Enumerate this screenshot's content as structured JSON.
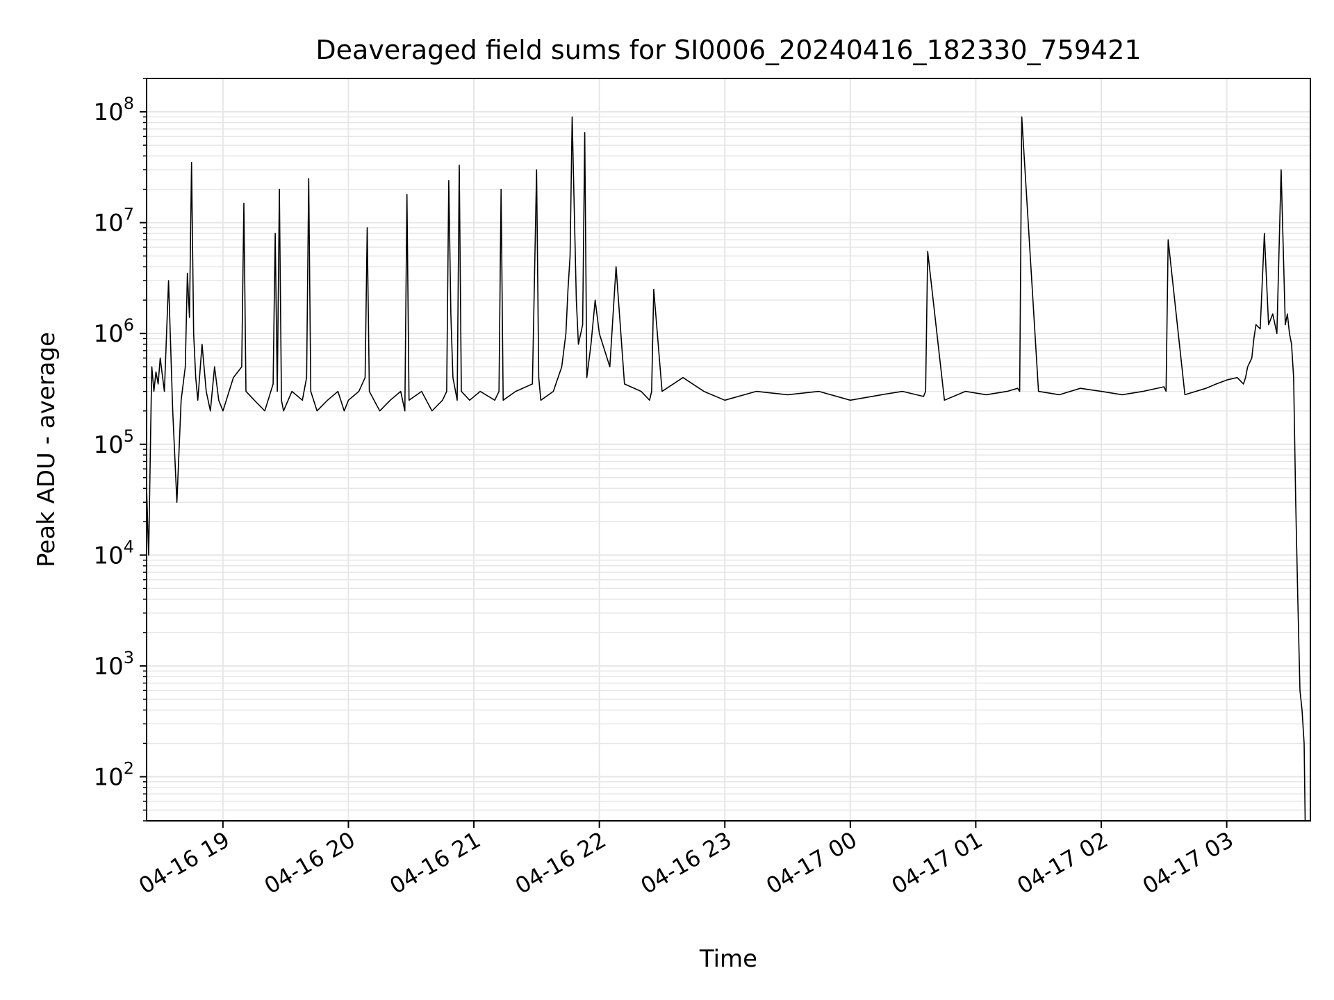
{
  "chart_data": {
    "type": "line",
    "title": "Deaveraged field sums for SI0006_20240416_182330_759421",
    "xlabel": "Time",
    "ylabel": "Peak ADU - average",
    "yscale": "log",
    "ylim": [
      40,
      200000000
    ],
    "xlim": [
      "2024-04-16T18:23:30",
      "2024-04-17T03:40:00"
    ],
    "grid": true,
    "legend": "none",
    "line_color": "#000000",
    "grid_color": "#e6e6e6",
    "x_ticks": [
      {
        "value": "2024-04-16T19:00:00",
        "label": "04-16 19"
      },
      {
        "value": "2024-04-16T20:00:00",
        "label": "04-16 20"
      },
      {
        "value": "2024-04-16T21:00:00",
        "label": "04-16 21"
      },
      {
        "value": "2024-04-16T22:00:00",
        "label": "04-16 22"
      },
      {
        "value": "2024-04-16T23:00:00",
        "label": "04-16 23"
      },
      {
        "value": "2024-04-17T00:00:00",
        "label": "04-17 00"
      },
      {
        "value": "2024-04-17T01:00:00",
        "label": "04-17 01"
      },
      {
        "value": "2024-04-17T02:00:00",
        "label": "04-17 02"
      },
      {
        "value": "2024-04-17T03:00:00",
        "label": "04-17 03"
      }
    ],
    "y_ticks": [
      {
        "value": 100,
        "base": "10",
        "exp": "2"
      },
      {
        "value": 1000,
        "base": "10",
        "exp": "3"
      },
      {
        "value": 10000,
        "base": "10",
        "exp": "4"
      },
      {
        "value": 100000,
        "base": "10",
        "exp": "5"
      },
      {
        "value": 1000000,
        "base": "10",
        "exp": "6"
      },
      {
        "value": 10000000,
        "base": "10",
        "exp": "7"
      },
      {
        "value": 100000000,
        "base": "10",
        "exp": "8"
      }
    ],
    "series": [
      {
        "x": [
          "2024-04-16T18:23:30",
          "2024-04-16T18:24:30",
          "2024-04-16T18:25:30",
          "2024-04-16T18:26:00",
          "2024-04-16T18:27:00",
          "2024-04-16T18:28:00",
          "2024-04-16T18:29:00",
          "2024-04-16T18:30:00",
          "2024-04-16T18:32:00",
          "2024-04-16T18:34:00",
          "2024-04-16T18:36:00",
          "2024-04-16T18:38:00",
          "2024-04-16T18:40:00",
          "2024-04-16T18:42:00",
          "2024-04-16T18:43:00",
          "2024-04-16T18:44:00",
          "2024-04-16T18:45:00",
          "2024-04-16T18:46:00",
          "2024-04-16T18:47:00",
          "2024-04-16T18:48:00",
          "2024-04-16T18:50:00",
          "2024-04-16T18:52:00",
          "2024-04-16T18:54:00",
          "2024-04-16T18:56:00",
          "2024-04-16T18:58:00",
          "2024-04-16T19:00:00",
          "2024-04-16T19:05:00",
          "2024-04-16T19:09:00",
          "2024-04-16T19:10:00",
          "2024-04-16T19:11:00",
          "2024-04-16T19:15:00",
          "2024-04-16T19:20:00",
          "2024-04-16T19:24:00",
          "2024-04-16T19:25:00",
          "2024-04-16T19:26:00",
          "2024-04-16T19:27:00",
          "2024-04-16T19:28:00",
          "2024-04-16T19:29:00",
          "2024-04-16T19:33:00",
          "2024-04-16T19:38:00",
          "2024-04-16T19:40:00",
          "2024-04-16T19:41:00",
          "2024-04-16T19:42:00",
          "2024-04-16T19:45:00",
          "2024-04-16T19:50:00",
          "2024-04-16T19:55:00",
          "2024-04-16T19:58:00",
          "2024-04-16T20:00:00",
          "2024-04-16T20:05:00",
          "2024-04-16T20:08:00",
          "2024-04-16T20:09:00",
          "2024-04-16T20:10:00",
          "2024-04-16T20:15:00",
          "2024-04-16T20:20:00",
          "2024-04-16T20:25:00",
          "2024-04-16T20:27:00",
          "2024-04-16T20:28:00",
          "2024-04-16T20:29:00",
          "2024-04-16T20:35:00",
          "2024-04-16T20:40:00",
          "2024-04-16T20:45:00",
          "2024-04-16T20:47:00",
          "2024-04-16T20:48:00",
          "2024-04-16T20:49:00",
          "2024-04-16T20:50:00",
          "2024-04-16T20:52:00",
          "2024-04-16T20:53:00",
          "2024-04-16T20:54:00",
          "2024-04-16T20:58:00",
          "2024-04-16T21:03:00",
          "2024-04-16T21:10:00",
          "2024-04-16T21:12:00",
          "2024-04-16T21:13:00",
          "2024-04-16T21:14:00",
          "2024-04-16T21:20:00",
          "2024-04-16T21:28:00",
          "2024-04-16T21:30:00",
          "2024-04-16T21:31:00",
          "2024-04-16T21:32:00",
          "2024-04-16T21:38:00",
          "2024-04-16T21:42:00",
          "2024-04-16T21:44:00",
          "2024-04-16T21:45:00",
          "2024-04-16T21:46:00",
          "2024-04-16T21:47:00",
          "2024-04-16T21:49:00",
          "2024-04-16T21:50:00",
          "2024-04-16T21:52:00",
          "2024-04-16T21:53:00",
          "2024-04-16T21:54:00",
          "2024-04-16T21:56:00",
          "2024-04-16T21:58:00",
          "2024-04-16T22:00:00",
          "2024-04-16T22:05:00",
          "2024-04-16T22:08:00",
          "2024-04-16T22:12:00",
          "2024-04-16T22:20:00",
          "2024-04-16T22:24:00",
          "2024-04-16T22:25:00",
          "2024-04-16T22:26:00",
          "2024-04-16T22:30:00",
          "2024-04-16T22:40:00",
          "2024-04-16T22:50:00",
          "2024-04-16T23:00:00",
          "2024-04-16T23:15:00",
          "2024-04-16T23:30:00",
          "2024-04-16T23:45:00",
          "2024-04-17T00:00:00",
          "2024-04-17T00:15:00",
          "2024-04-17T00:25:00",
          "2024-04-17T00:35:00",
          "2024-04-17T00:36:00",
          "2024-04-17T00:37:00",
          "2024-04-17T00:45:00",
          "2024-04-17T00:55:00",
          "2024-04-17T01:05:00",
          "2024-04-17T01:15:00",
          "2024-04-17T01:20:00",
          "2024-04-17T01:21:00",
          "2024-04-17T01:22:00",
          "2024-04-17T01:30:00",
          "2024-04-17T01:40:00",
          "2024-04-17T01:50:00",
          "2024-04-17T02:00:00",
          "2024-04-17T02:10:00",
          "2024-04-17T02:20:00",
          "2024-04-17T02:30:00",
          "2024-04-17T02:31:00",
          "2024-04-17T02:32:00",
          "2024-04-17T02:40:00",
          "2024-04-17T02:50:00",
          "2024-04-17T02:55:00",
          "2024-04-17T03:00:00",
          "2024-04-17T03:05:00",
          "2024-04-17T03:08:00",
          "2024-04-17T03:09:00",
          "2024-04-17T03:10:00",
          "2024-04-17T03:12:00",
          "2024-04-17T03:13:00",
          "2024-04-17T03:14:00",
          "2024-04-17T03:16:00",
          "2024-04-17T03:18:00",
          "2024-04-17T03:20:00",
          "2024-04-17T03:22:00",
          "2024-04-17T03:24:00",
          "2024-04-17T03:26:00",
          "2024-04-17T03:28:00",
          "2024-04-17T03:29:00",
          "2024-04-17T03:30:00",
          "2024-04-17T03:31:00",
          "2024-04-17T03:32:00",
          "2024-04-17T03:33:00",
          "2024-04-17T03:34:00",
          "2024-04-17T03:35:00",
          "2024-04-17T03:36:00",
          "2024-04-17T03:37:00",
          "2024-04-17T03:37:30"
        ],
        "values": [
          40000,
          10000,
          150000,
          500000,
          300000,
          450000,
          350000,
          600000,
          300000,
          3000000,
          200000,
          30000,
          250000,
          500000,
          3500000,
          1400000,
          35000000,
          1000000,
          400000,
          250000,
          800000,
          300000,
          200000,
          500000,
          250000,
          200000,
          400000,
          500000,
          15000000,
          300000,
          250000,
          200000,
          350000,
          8000000,
          300000,
          20000000,
          250000,
          200000,
          300000,
          250000,
          400000,
          25000000,
          300000,
          200000,
          250000,
          300000,
          200000,
          250000,
          300000,
          400000,
          9000000,
          300000,
          200000,
          250000,
          300000,
          200000,
          18000000,
          250000,
          300000,
          200000,
          250000,
          300000,
          24000000,
          1500000,
          400000,
          250000,
          33000000,
          300000,
          250000,
          300000,
          250000,
          300000,
          20000000,
          250000,
          300000,
          350000,
          30000000,
          400000,
          250000,
          300000,
          500000,
          1000000,
          2500000,
          5000000,
          90000000,
          2000000,
          800000,
          1200000,
          65000000,
          400000,
          800000,
          2000000,
          1000000,
          500000,
          4000000,
          350000,
          300000,
          250000,
          300000,
          2500000,
          300000,
          400000,
          300000,
          250000,
          300000,
          280000,
          300000,
          250000,
          280000,
          300000,
          270000,
          300000,
          5500000,
          250000,
          300000,
          280000,
          300000,
          320000,
          300000,
          90000000,
          300000,
          280000,
          320000,
          300000,
          280000,
          300000,
          330000,
          300000,
          7000000,
          280000,
          320000,
          350000,
          380000,
          400000,
          350000,
          400000,
          500000,
          600000,
          900000,
          1200000,
          1100000,
          8000000,
          1200000,
          1500000,
          1000000,
          30000000,
          1200000,
          1500000,
          1000000,
          800000,
          400000,
          30000,
          4000,
          600,
          400,
          200,
          40
        ]
      }
    ]
  }
}
